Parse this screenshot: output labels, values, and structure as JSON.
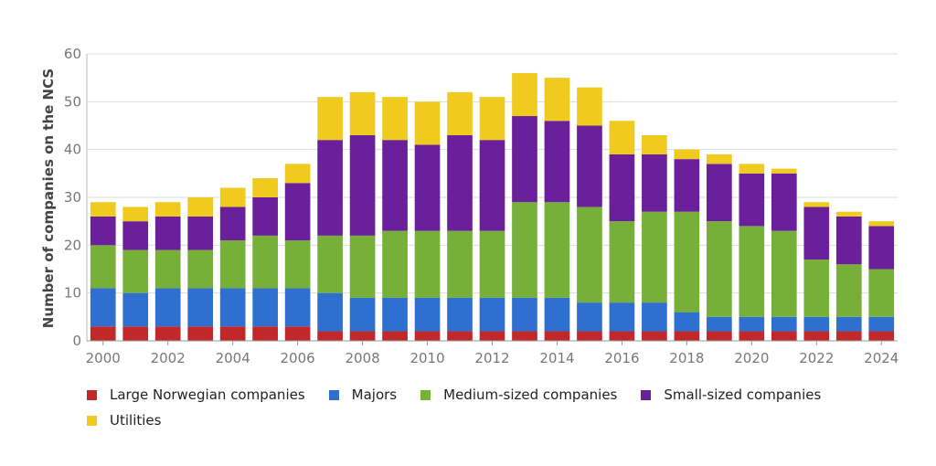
{
  "chart_data": {
    "type": "bar",
    "stacked": true,
    "title": "",
    "xlabel": "",
    "ylabel": "Number of companies on the NCS",
    "ylim": [
      0,
      60
    ],
    "yticks": [
      0,
      10,
      20,
      30,
      40,
      50,
      60
    ],
    "grid": true,
    "legend_position": "bottom",
    "categories": [
      2000,
      2001,
      2002,
      2003,
      2004,
      2005,
      2006,
      2007,
      2008,
      2009,
      2010,
      2011,
      2012,
      2013,
      2014,
      2015,
      2016,
      2017,
      2018,
      2019,
      2020,
      2021,
      2022,
      2023,
      2024
    ],
    "xticks": [
      "2000",
      "2002",
      "2004",
      "2006",
      "2008",
      "2010",
      "2012",
      "2014",
      "2016",
      "2018",
      "2020",
      "2022",
      "2024"
    ],
    "series": [
      {
        "name": "Large Norwegian companies",
        "color": "#c0282a",
        "values": [
          3,
          3,
          3,
          3,
          3,
          3,
          3,
          2,
          2,
          2,
          2,
          2,
          2,
          2,
          2,
          2,
          2,
          2,
          2,
          2,
          2,
          2,
          2,
          2,
          2
        ]
      },
      {
        "name": "Majors",
        "color": "#2f6fd0",
        "values": [
          8,
          7,
          8,
          8,
          8,
          8,
          8,
          8,
          7,
          7,
          7,
          7,
          7,
          7,
          7,
          6,
          6,
          6,
          4,
          3,
          3,
          3,
          3,
          3,
          3
        ]
      },
      {
        "name": "Medium-sized companies",
        "color": "#76b039",
        "values": [
          9,
          9,
          8,
          8,
          10,
          11,
          10,
          12,
          13,
          14,
          14,
          14,
          14,
          20,
          20,
          20,
          17,
          19,
          21,
          20,
          19,
          18,
          12,
          11,
          10
        ]
      },
      {
        "name": "Small-sized companies",
        "color": "#6a1f9b",
        "values": [
          6,
          6,
          7,
          7,
          7,
          8,
          12,
          20,
          21,
          19,
          18,
          20,
          19,
          18,
          17,
          17,
          14,
          12,
          11,
          12,
          11,
          12,
          11,
          10,
          9
        ]
      },
      {
        "name": "Utilities",
        "color": "#f0ca1e",
        "values": [
          3,
          3,
          3,
          4,
          4,
          4,
          4,
          9,
          9,
          9,
          9,
          9,
          9,
          9,
          9,
          8,
          7,
          4,
          2,
          2,
          2,
          1,
          1,
          1,
          1
        ]
      }
    ]
  }
}
